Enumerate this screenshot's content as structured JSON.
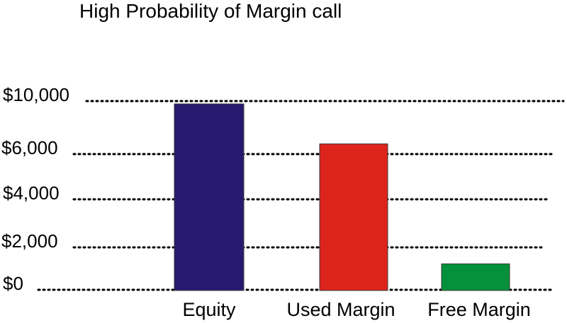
{
  "chart_data": {
    "type": "bar",
    "title": "High Probability of Margin call",
    "xlabel": "",
    "ylabel": "",
    "categories": [
      "Equity",
      "Used Margin",
      "Free Margin"
    ],
    "values": [
      9800,
      7700,
      1400
    ],
    "colors": [
      "#271a6e",
      "#dc241d",
      "#04913a"
    ],
    "ytick_labels": [
      "$10,000",
      "$6,000",
      "$4,000",
      "$2,000",
      "$0"
    ],
    "grid": true,
    "legend": false
  }
}
